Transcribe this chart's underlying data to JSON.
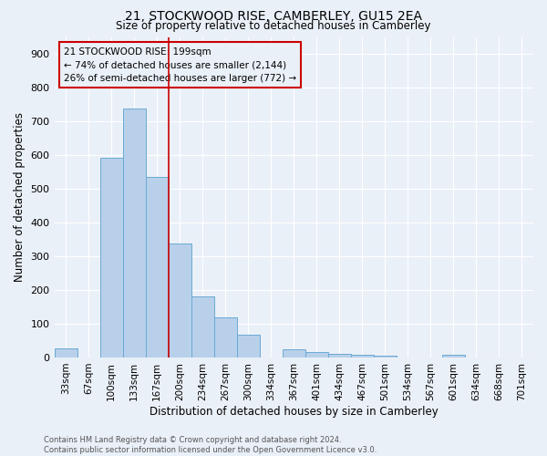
{
  "title1": "21, STOCKWOOD RISE, CAMBERLEY, GU15 2EA",
  "title2": "Size of property relative to detached houses in Camberley",
  "xlabel": "Distribution of detached houses by size in Camberley",
  "ylabel": "Number of detached properties",
  "categories": [
    "33sqm",
    "67sqm",
    "100sqm",
    "133sqm",
    "167sqm",
    "200sqm",
    "234sqm",
    "267sqm",
    "300sqm",
    "334sqm",
    "367sqm",
    "401sqm",
    "434sqm",
    "467sqm",
    "501sqm",
    "534sqm",
    "567sqm",
    "601sqm",
    "634sqm",
    "668sqm",
    "701sqm"
  ],
  "values": [
    27,
    0,
    593,
    740,
    535,
    338,
    180,
    118,
    67,
    0,
    25,
    15,
    12,
    8,
    6,
    0,
    0,
    8,
    0,
    0,
    0
  ],
  "bar_color": "#b8d0ea",
  "bar_edge_color": "#6aaad4",
  "bg_color": "#eaf0f8",
  "grid_color": "#ffffff",
  "vline_x": 4.5,
  "vline_color": "#cc0000",
  "annotation_line1": "21 STOCKWOOD RISE: 199sqm",
  "annotation_line2": "← 74% of detached houses are smaller (2,144)",
  "annotation_line3": "26% of semi-detached houses are larger (772) →",
  "annotation_box_color": "#cc0000",
  "footnote1": "Contains HM Land Registry data © Crown copyright and database right 2024.",
  "footnote2": "Contains public sector information licensed under the Open Government Licence v3.0.",
  "ylim": [
    0,
    950
  ],
  "yticks": [
    0,
    100,
    200,
    300,
    400,
    500,
    600,
    700,
    800,
    900
  ]
}
